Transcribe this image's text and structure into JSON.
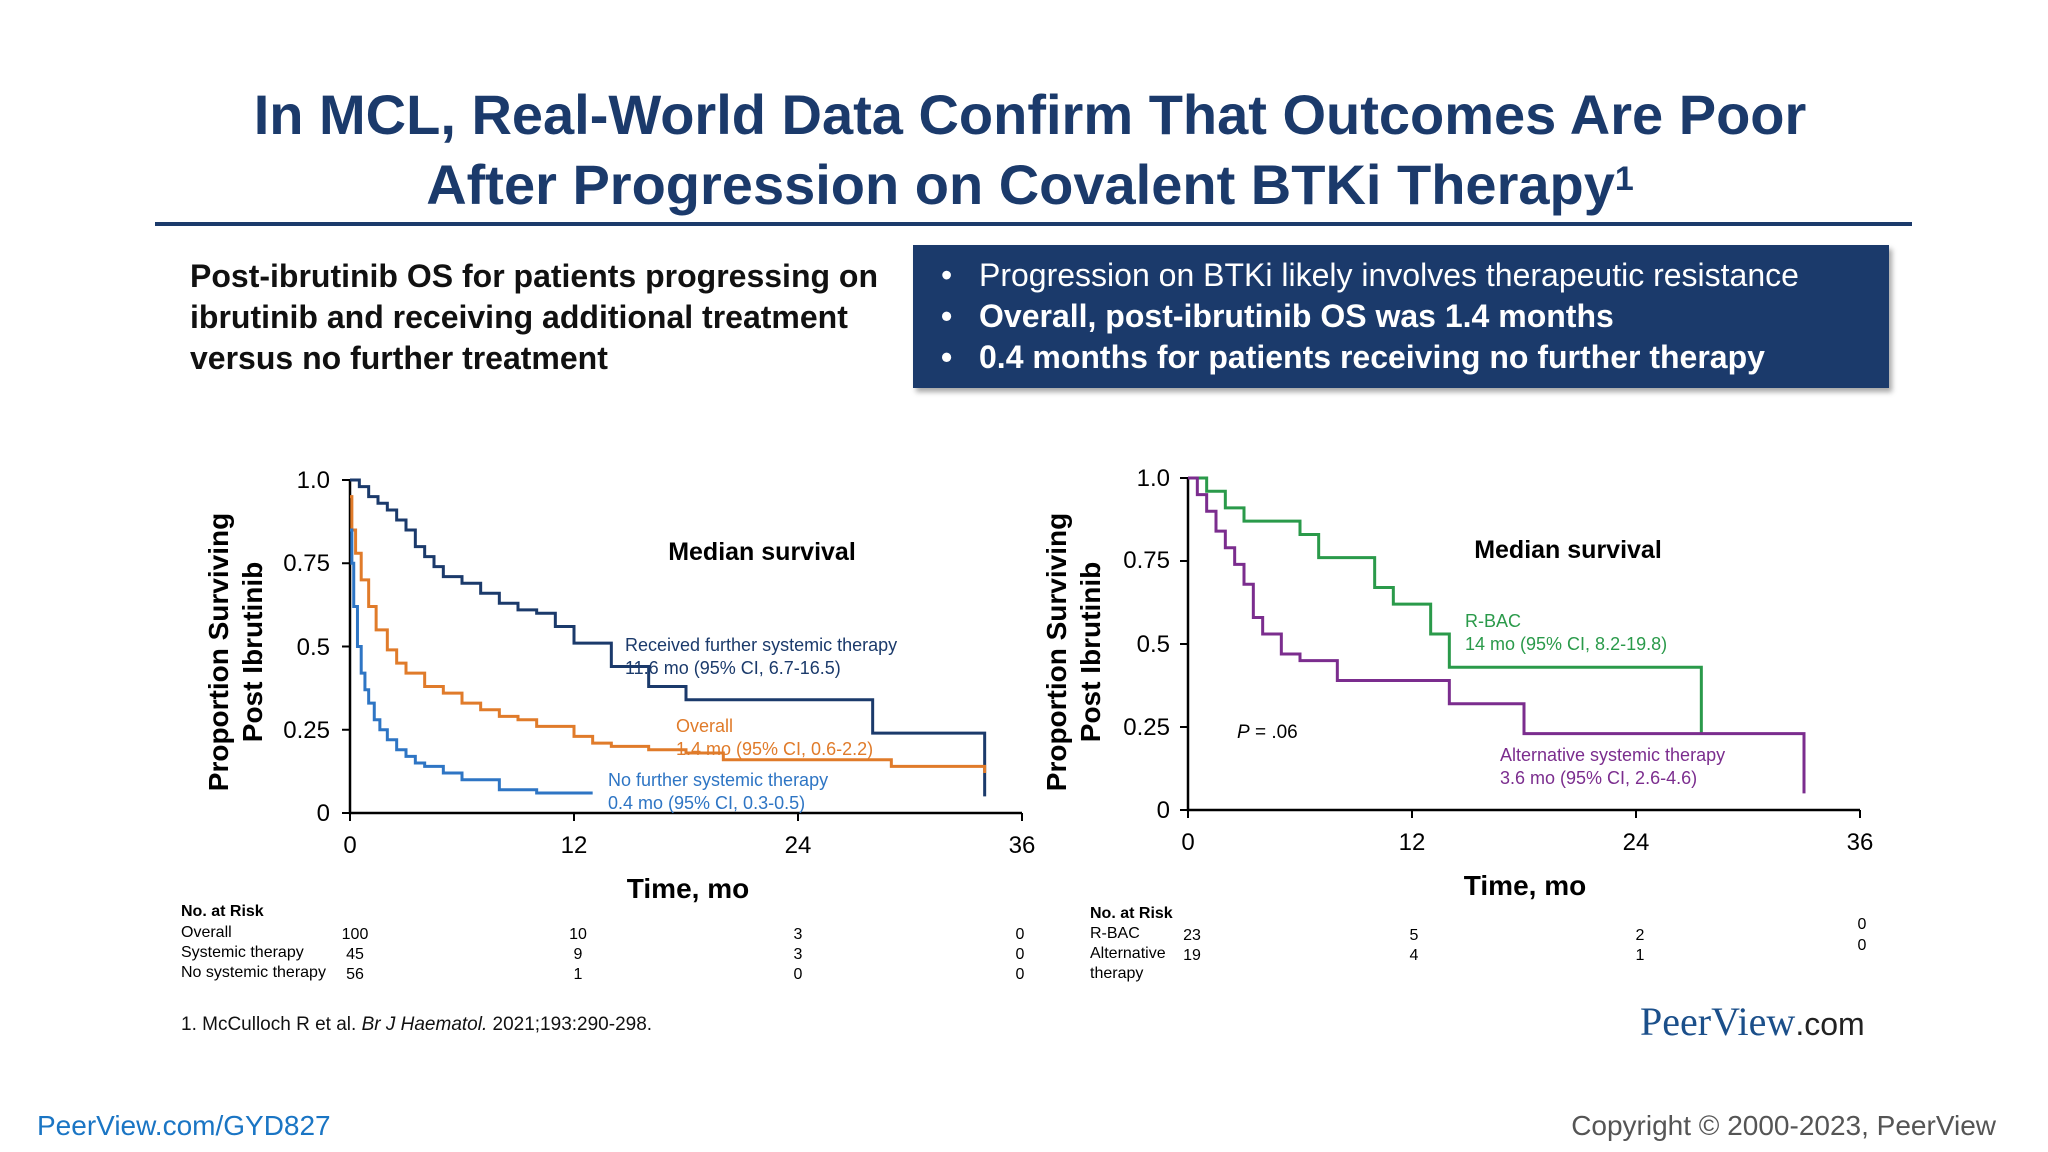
{
  "slide": {
    "title_line1": "In MCL, Real-World Data Confirm That Outcomes Are Poor",
    "title_line2": "After Progression on Covalent BTKi Therapy",
    "title_sup": "1",
    "subtitle": "Post-ibrutinib OS for patients progressing on ibrutinib and receiving additional treatment versus no further treatment",
    "bullets": [
      "Progression on BTKi likely involves therapeutic resistance",
      "Overall, post-ibrutinib OS was 1.4 months",
      "0.4 months for patients receiving no further therapy"
    ],
    "footnote_prefix": "1. McCulloch R et al. ",
    "footnote_journal": "Br J Haematol.",
    "footnote_suffix": " 2021;193:290-298.",
    "logo_main": "PeerView",
    "logo_suffix": ".com",
    "link": "PeerView.com/GYD827",
    "copyright": "Copyright © 2000-2023, PeerView",
    "colors": {
      "navy": "#1b3a6b",
      "orange": "#e07b2a",
      "blue": "#2e75c4",
      "green": "#2a9a4a",
      "purple": "#7b2d8e"
    }
  },
  "chart_data": [
    {
      "type": "line",
      "step": true,
      "xlabel": "Time, mo",
      "ylabel_line1": "Proportion Surviving",
      "ylabel_line2": "Post Ibrutinib",
      "xlim": [
        0,
        36
      ],
      "ylim": [
        0,
        1.0
      ],
      "xticks": [
        "0",
        "12",
        "24",
        "36"
      ],
      "yticks": [
        "0",
        "0.25",
        "0.5",
        "0.75",
        "1.0"
      ],
      "annotation_title": "Median survival",
      "series": [
        {
          "name": "Received further systemic therapy",
          "label_detail": "11.6 mo (95% CI, 6.7-16.5)",
          "color": "#1b3a6b",
          "x": [
            0,
            0.5,
            1,
            1.5,
            2,
            2.5,
            3,
            3.5,
            4,
            4.5,
            5,
            6,
            7,
            8,
            9,
            10,
            11,
            12,
            14,
            16,
            18,
            20,
            24,
            28,
            29,
            33,
            34,
            34
          ],
          "y": [
            1.0,
            0.98,
            0.95,
            0.93,
            0.91,
            0.88,
            0.85,
            0.8,
            0.77,
            0.74,
            0.71,
            0.69,
            0.66,
            0.63,
            0.61,
            0.6,
            0.56,
            0.51,
            0.44,
            0.38,
            0.34,
            0.34,
            0.34,
            0.24,
            0.24,
            0.24,
            0.05,
            0.05
          ]
        },
        {
          "name": "Overall",
          "label_detail": "1.4 mo (95% CI, 0.6-2.2)",
          "color": "#e07b2a",
          "x": [
            0,
            0.1,
            0.3,
            0.6,
            1,
            1.4,
            2,
            2.5,
            3,
            4,
            5,
            6,
            7,
            8,
            9,
            10,
            12,
            13,
            14,
            16,
            18,
            20,
            24,
            28,
            29,
            34,
            34
          ],
          "y": [
            0.95,
            0.85,
            0.78,
            0.7,
            0.62,
            0.55,
            0.49,
            0.45,
            0.42,
            0.38,
            0.36,
            0.33,
            0.31,
            0.29,
            0.28,
            0.26,
            0.23,
            0.21,
            0.2,
            0.19,
            0.18,
            0.16,
            0.16,
            0.16,
            0.14,
            0.12,
            0.12
          ]
        },
        {
          "name": "No further systemic therapy",
          "label_detail": "0.4 mo (95% CI, 0.3-0.5)",
          "color": "#2e75c4",
          "x": [
            0,
            0.1,
            0.2,
            0.4,
            0.6,
            0.8,
            1,
            1.3,
            1.6,
            2,
            2.5,
            3,
            3.5,
            4,
            5,
            6,
            8,
            10,
            12,
            13
          ],
          "y": [
            0.85,
            0.75,
            0.62,
            0.5,
            0.42,
            0.37,
            0.33,
            0.28,
            0.25,
            0.22,
            0.19,
            0.17,
            0.15,
            0.14,
            0.12,
            0.1,
            0.07,
            0.06,
            0.06,
            0.06
          ]
        }
      ],
      "risk_table": {
        "header": "No. at Risk",
        "rows": [
          {
            "label": "Overall",
            "values": [
              "100",
              "10",
              "3",
              "0"
            ]
          },
          {
            "label": "Systemic therapy",
            "values": [
              "45",
              "9",
              "3",
              "0"
            ]
          },
          {
            "label": "No systemic therapy",
            "values": [
              "56",
              "1",
              "0",
              "0"
            ]
          }
        ]
      }
    },
    {
      "type": "line",
      "step": true,
      "xlabel": "Time, mo",
      "ylabel_line1": "Proportion Surviving",
      "ylabel_line2": "Post Ibrutinib",
      "xlim": [
        0,
        36
      ],
      "ylim": [
        0,
        1.0
      ],
      "xticks": [
        "0",
        "12",
        "24",
        "36"
      ],
      "yticks": [
        "0",
        "0.25",
        "0.5",
        "0.75",
        "1.0"
      ],
      "annotation_title": "Median survival",
      "p_value_label": "P",
      "p_value": " = .06",
      "series": [
        {
          "name": "R-BAC",
          "label_detail": "14 mo (95% CI, 8.2-19.8)",
          "color": "#2a9a4a",
          "x": [
            0,
            1,
            2,
            3,
            5,
            6,
            7,
            9,
            10,
            11,
            12,
            13,
            14,
            16,
            18,
            20,
            24,
            27.5,
            27.5
          ],
          "y": [
            1.0,
            0.96,
            0.91,
            0.87,
            0.87,
            0.83,
            0.76,
            0.76,
            0.67,
            0.62,
            0.62,
            0.53,
            0.43,
            0.43,
            0.43,
            0.43,
            0.43,
            0.43,
            0.23
          ]
        },
        {
          "name": "Alternative systemic therapy",
          "label_detail": "3.6 mo (95% CI, 2.6-4.6)",
          "color": "#7b2d8e",
          "x": [
            0,
            0.5,
            1,
            1.5,
            2,
            2.5,
            3,
            3.5,
            4,
            5,
            6,
            7,
            8,
            10,
            12,
            14,
            16,
            18,
            20,
            24,
            28,
            30,
            33,
            33
          ],
          "y": [
            1.0,
            0.95,
            0.9,
            0.84,
            0.79,
            0.74,
            0.68,
            0.58,
            0.53,
            0.47,
            0.45,
            0.45,
            0.39,
            0.39,
            0.39,
            0.32,
            0.32,
            0.23,
            0.23,
            0.23,
            0.23,
            0.23,
            0.23,
            0.05
          ]
        }
      ],
      "risk_table": {
        "header": "No. at Risk",
        "rows": [
          {
            "label": "R-BAC",
            "values": [
              "23",
              "5",
              "2",
              "0"
            ]
          },
          {
            "label": "Alternative therapy",
            "values": [
              "19",
              "4",
              "1",
              "0"
            ]
          }
        ]
      }
    }
  ]
}
